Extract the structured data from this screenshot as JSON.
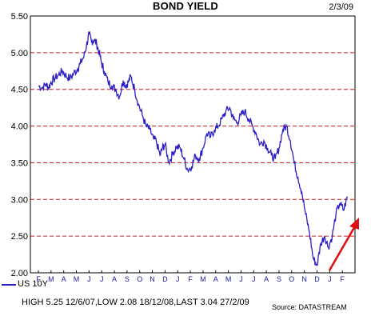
{
  "chart_data": {
    "type": "line",
    "title": "BOND YIELD",
    "date_label": "2/3/09",
    "x_tick_labels": [
      "F",
      "M",
      "A",
      "M",
      "J",
      "J",
      "A",
      "S",
      "O",
      "N",
      "D",
      "J",
      "F",
      "M",
      "A",
      "M",
      "J",
      "J",
      "A",
      "S",
      "O",
      "N",
      "D",
      "J",
      "F"
    ],
    "y_ticks": [
      "2.00",
      "2.50",
      "3.00",
      "3.50",
      "4.00",
      "4.50",
      "5.00",
      "5.50"
    ],
    "ylim": [
      2.0,
      5.5
    ],
    "grid": "horizontal dashed red",
    "series": [
      {
        "name": "US 10Y",
        "color": "#2b1fc7",
        "x_months": [
          0,
          0.3,
          0.6,
          0.8,
          1.0,
          1.3,
          1.6,
          1.9,
          2.2,
          2.5,
          2.8,
          3.1,
          3.3,
          3.6,
          3.8,
          4.0,
          4.2,
          4.4,
          4.6,
          4.8,
          5.0,
          5.2,
          5.5,
          5.8,
          6.1,
          6.4,
          6.7,
          6.9,
          7.1,
          7.3,
          7.6,
          7.9,
          8.2,
          8.5,
          8.8,
          9.1,
          9.3,
          9.6,
          9.8,
          10.0,
          10.3,
          10.6,
          10.9,
          11.2,
          11.5,
          11.8,
          12.1,
          12.4,
          12.7,
          13.0,
          13.3,
          13.6,
          13.9,
          14.2,
          14.5,
          14.8,
          15.1,
          15.4,
          15.7,
          16.0,
          16.3,
          16.6,
          16.9,
          17.2,
          17.5,
          17.8,
          18.1,
          18.4,
          18.7,
          19.0,
          19.3,
          19.6,
          19.9,
          20.2,
          20.5,
          20.8,
          21.1,
          21.4,
          21.7,
          22.0,
          22.3,
          22.6,
          22.9,
          23.2,
          23.5,
          23.8,
          24.1,
          24.4
        ],
        "values": [
          4.55,
          4.52,
          4.57,
          4.52,
          4.6,
          4.65,
          4.7,
          4.75,
          4.68,
          4.65,
          4.72,
          4.78,
          4.85,
          4.95,
          5.1,
          5.25,
          5.15,
          5.18,
          5.12,
          5.0,
          4.85,
          4.75,
          4.6,
          4.55,
          4.5,
          4.4,
          4.62,
          4.55,
          4.6,
          4.68,
          4.5,
          4.3,
          4.15,
          4.0,
          3.95,
          3.82,
          3.8,
          3.6,
          3.7,
          3.75,
          3.5,
          3.62,
          3.72,
          3.7,
          3.55,
          3.4,
          3.45,
          3.6,
          3.55,
          3.7,
          3.9,
          3.85,
          3.95,
          4.0,
          4.1,
          4.2,
          4.25,
          4.1,
          4.05,
          4.15,
          4.2,
          4.1,
          4.0,
          3.9,
          3.75,
          3.8,
          3.7,
          3.6,
          3.55,
          3.7,
          3.95,
          4.0,
          3.8,
          3.5,
          3.3,
          3.1,
          2.8,
          2.55,
          2.2,
          2.1,
          2.4,
          2.5,
          2.35,
          2.5,
          2.8,
          2.95,
          2.85,
          3.04
        ]
      }
    ],
    "annotation": "upward red arrow (trend)",
    "legend": "bottom-left"
  },
  "legend": {
    "series_label": "US 10Y"
  },
  "source": "Source: DATASTREAM",
  "footer": "HIGH 5.25 12/6/07,LOW 2.08 18/12/08,LAST 3.04 27/2/09"
}
